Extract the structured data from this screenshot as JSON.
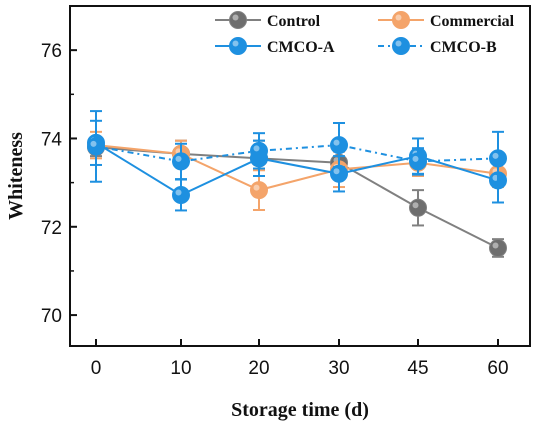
{
  "chart_data": {
    "type": "line",
    "xlabel": "Storage time (d)",
    "ylabel": "Whiteness",
    "x": [
      "0",
      "10",
      "20",
      "30",
      "45",
      "60"
    ],
    "x_tick_labels": [
      "0",
      "10",
      "20",
      "30",
      "45",
      "60"
    ],
    "ylim": [
      69.3,
      77.0
    ],
    "y_ticks": [
      70,
      72,
      74,
      76
    ],
    "y_tick_labels": [
      "70",
      "72",
      "74",
      "76"
    ],
    "grid": false,
    "legend_position": "top-right",
    "series": [
      {
        "name": "Control",
        "color": "#808080",
        "marker_color": "#6e6e6e",
        "dash": false,
        "values": [
          73.8,
          73.65,
          73.55,
          73.45,
          72.43,
          71.52
        ],
        "errors": [
          0.2,
          0.3,
          0.4,
          0.3,
          0.4,
          0.2
        ]
      },
      {
        "name": "Commercial",
        "color": "#f4a46a",
        "marker_color": "#f4a46a",
        "dash": false,
        "values": [
          73.85,
          73.65,
          72.83,
          73.3,
          73.45,
          73.2
        ],
        "errors": [
          0.3,
          0.3,
          0.45,
          0.4,
          0.3,
          0.3
        ]
      },
      {
        "name": "CMCO-A",
        "color": "#1e90e0",
        "marker_color": "#1e90e0",
        "dash": false,
        "values": [
          73.9,
          72.72,
          73.55,
          73.2,
          73.6,
          73.05
        ],
        "errors": [
          0.5,
          0.35,
          0.4,
          0.4,
          0.4,
          0.5
        ]
      },
      {
        "name": "CMCO-B",
        "color": "#1e90e0",
        "marker_color": "#1e90e0",
        "dash": true,
        "values": [
          73.82,
          73.48,
          73.72,
          73.85,
          73.48,
          73.55
        ],
        "errors": [
          0.8,
          0.4,
          0.4,
          0.5,
          0.3,
          0.6
        ]
      }
    ]
  }
}
